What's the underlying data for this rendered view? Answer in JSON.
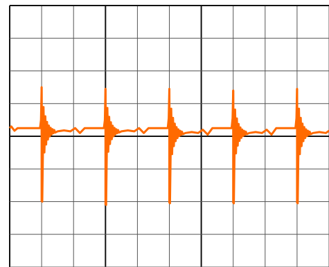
{
  "colors": {
    "background": "#ffffff",
    "grid_minor": "#555555",
    "grid_major": "#111111",
    "trace": "#ff6a00"
  },
  "chart_data": {
    "type": "line",
    "title": "",
    "xlabel": "",
    "ylabel": "",
    "grid": true,
    "legend": "none",
    "x_divisions": 10,
    "y_divisions": 8,
    "xlim": [
      0,
      10
    ],
    "ylim": [
      -4,
      4
    ],
    "major_x_lines": [
      3,
      6
    ],
    "baseline_level": 0.25,
    "series": [
      {
        "trace_kind": "ringing-pulse-train",
        "pulses": [
          {
            "x": 1.0,
            "peak": 1.5,
            "trough": -2.0,
            "low_before": 0.5,
            "high_after": 0.5,
            "settled": 0.15
          },
          {
            "x": 3.0,
            "peak": 1.45,
            "trough": -2.1,
            "low_before": 0.3,
            "high_after": 0.5,
            "settled": 0.15
          },
          {
            "x": 5.0,
            "peak": 1.45,
            "trough": -2.05,
            "low_before": 0.3,
            "high_after": 0.55,
            "settled": 0.1
          },
          {
            "x": 7.0,
            "peak": 1.4,
            "trough": -2.05,
            "low_before": 0.25,
            "high_after": 0.55,
            "settled": 0.1
          },
          {
            "x": 9.0,
            "peak": 1.45,
            "trough": -2.05,
            "low_before": 0.25,
            "high_after": 0.55,
            "settled": 0.1
          }
        ]
      }
    ]
  }
}
